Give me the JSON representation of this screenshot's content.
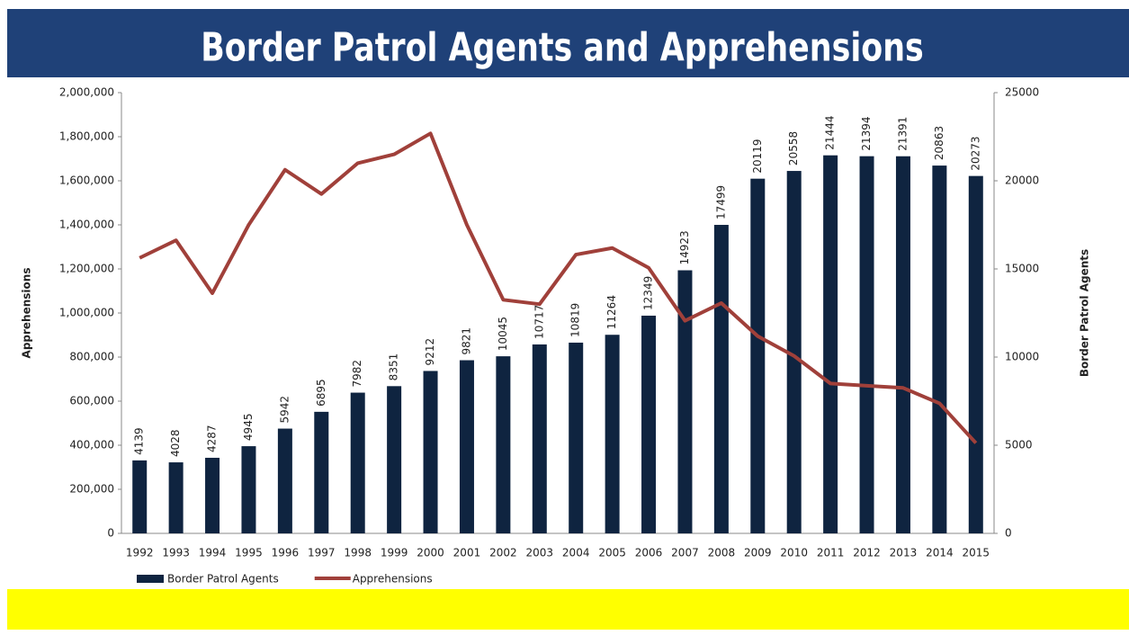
{
  "chart_data": {
    "type": "bar-line",
    "title": "Border Patrol Agents and Apprehensions",
    "y_label": "Apprehensions",
    "y2_label": "Border Patrol Agents",
    "categories": [
      "1992",
      "1993",
      "1994",
      "1995",
      "1996",
      "1997",
      "1998",
      "1999",
      "2000",
      "2001",
      "2002",
      "2003",
      "2004",
      "2005",
      "2006",
      "2007",
      "2008",
      "2009",
      "2010",
      "2011",
      "2012",
      "2013",
      "2014",
      "2015"
    ],
    "series": [
      {
        "name": "Border Patrol Agents",
        "type": "bar",
        "axis": "y2",
        "color": "#0f2440",
        "values": [
          4139,
          4028,
          4287,
          4945,
          5942,
          6895,
          7982,
          8351,
          9212,
          9821,
          10045,
          10717,
          10819,
          11264,
          12349,
          14923,
          17499,
          20119,
          20558,
          21444,
          21394,
          21391,
          20863,
          20273
        ]
      },
      {
        "name": "Apprehensions",
        "type": "line",
        "axis": "y",
        "color": "#a0403a",
        "values": [
          1250000,
          1330000,
          1090000,
          1400000,
          1650000,
          1540000,
          1680000,
          1720000,
          1815000,
          1400000,
          1060000,
          1040000,
          1265000,
          1295000,
          1205000,
          965000,
          1045000,
          895000,
          805000,
          680000,
          670000,
          660000,
          590000,
          410000
        ]
      }
    ],
    "ylim": [
      0,
      2000000
    ],
    "yticks": [
      0,
      {
        "value": 200000,
        "label": "200,000"
      },
      {
        "value": 400000,
        "label": "400,000"
      },
      {
        "value": 600000,
        "label": "600,000"
      },
      {
        "value": 800000,
        "label": "800,000"
      },
      {
        "value": 1000000,
        "label": "1,000,000"
      },
      {
        "value": 1200000,
        "label": "1,200,000"
      },
      {
        "value": 1400000,
        "label": "1,400,000"
      },
      {
        "value": 1600000,
        "label": "1,600,000"
      },
      {
        "value": 1800000,
        "label": "1,800,000"
      },
      {
        "value": 2000000,
        "label": "2,000,000"
      }
    ],
    "y2lim": [
      0,
      25000
    ],
    "y2ticks": [
      0,
      5000,
      10000,
      15000,
      20000,
      25000
    ],
    "legend": "bottom-left"
  }
}
